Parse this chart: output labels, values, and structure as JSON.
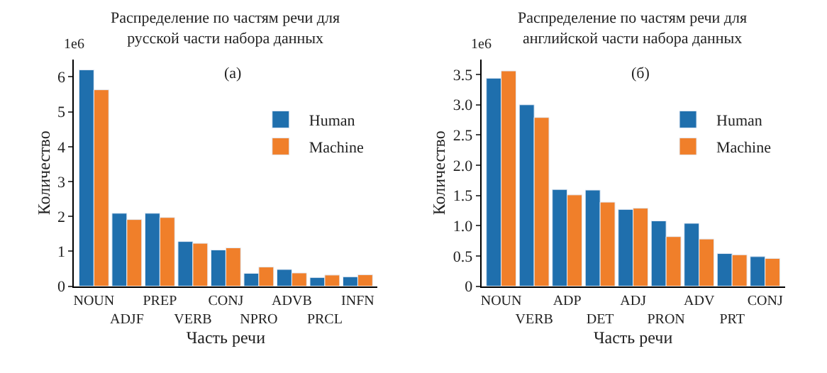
{
  "chart_data": [
    {
      "type": "bar",
      "title": "Распределение по частям речи для\nрусской части набора данных",
      "xlabel": "Часть речи",
      "ylabel": "Количество",
      "annotations": [
        "1e6",
        "(a)"
      ],
      "categories": [
        "NOUN",
        "ADJF",
        "PREP",
        "VERB",
        "CONJ",
        "NPRO",
        "ADVB",
        "PRCL",
        "INFN"
      ],
      "series": [
        {
          "name": "Human",
          "color": "#1f6fad",
          "values": [
            6.2,
            2.09,
            2.09,
            1.28,
            1.04,
            0.37,
            0.48,
            0.25,
            0.27
          ]
        },
        {
          "name": "Machine",
          "color": "#f07f2a",
          "values": [
            5.63,
            1.91,
            1.97,
            1.23,
            1.1,
            0.55,
            0.38,
            0.32,
            0.33
          ]
        }
      ],
      "ylim": [
        0,
        6.5
      ],
      "yticks": [
        0,
        1,
        2,
        3,
        4,
        5,
        6
      ],
      "legend": "top right"
    },
    {
      "type": "bar",
      "title": "Распределение по частям речи для\nанглийской части набора данных",
      "xlabel": "Часть речи",
      "ylabel": "Количество",
      "annotations": [
        "1e6",
        "(б)"
      ],
      "categories": [
        "NOUN",
        "VERB",
        "ADP",
        "DET",
        "ADJ",
        "PRON",
        "ADV",
        "PRT",
        "CONJ"
      ],
      "series": [
        {
          "name": "Human",
          "color": "#1f6fad",
          "values": [
            3.44,
            3.0,
            1.6,
            1.59,
            1.27,
            1.08,
            1.04,
            0.54,
            0.49
          ]
        },
        {
          "name": "Machine",
          "color": "#f07f2a",
          "values": [
            3.56,
            2.79,
            1.51,
            1.39,
            1.29,
            0.82,
            0.78,
            0.52,
            0.46
          ]
        }
      ],
      "ylim": [
        0,
        3.75
      ],
      "yticks": [
        0,
        0.5,
        {
          "value": 1,
          "label": "1.0"
        },
        1.5,
        {
          "value": 2,
          "label": "2.0"
        },
        2.5,
        {
          "value": 3,
          "label": "3.0"
        },
        3.5
      ],
      "legend": "top right"
    }
  ]
}
